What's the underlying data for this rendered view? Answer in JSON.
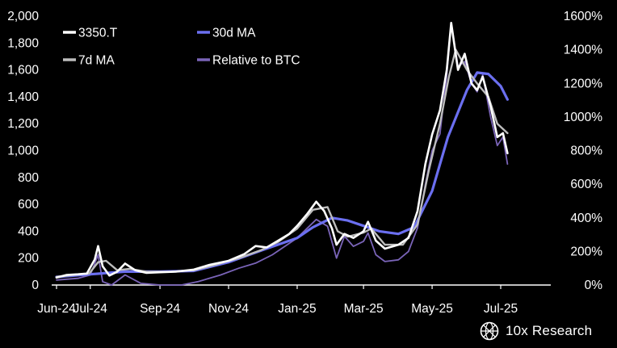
{
  "brand": {
    "name": "10x Research",
    "logo_icon": "globe-grid-logo-icon"
  },
  "colors": {
    "background": "#000000",
    "text": "#ffffff",
    "stock": "#ffffff",
    "ma7": "#bdbdbd",
    "ma30": "#6b6ff0",
    "relative": "#7a64b8"
  },
  "chart_data": {
    "type": "line",
    "x_ticks": [
      "Jun-24",
      "Jul-24",
      "Sep-24",
      "Nov-24",
      "Jan-25",
      "Mar-25",
      "May-25",
      "Jul-25"
    ],
    "x_tick_dates": [
      "2024-06-01",
      "2024-07-01",
      "2024-09-01",
      "2024-11-01",
      "2025-01-01",
      "2025-03-01",
      "2025-05-01",
      "2025-07-01"
    ],
    "y_left": {
      "range": [
        0,
        2000
      ],
      "ticks": [
        "0",
        "200",
        "400",
        "600",
        "800",
        "1,000",
        "1,200",
        "1,400",
        "1,600",
        "1,800",
        "2,000"
      ]
    },
    "y_right": {
      "range": [
        0,
        1600
      ],
      "unit": "%",
      "ticks": [
        "0%",
        "200%",
        "400%",
        "600%",
        "800%",
        "1000%",
        "1200%",
        "1400%",
        "1600%"
      ]
    },
    "grid": false,
    "legend_position": "top-left",
    "series": [
      {
        "name": "3350.T",
        "axis": "left",
        "color": "#ffffff",
        "points": [
          [
            "2024-06-01",
            55
          ],
          [
            "2024-06-10",
            75
          ],
          [
            "2024-06-20",
            80
          ],
          [
            "2024-06-28",
            85
          ],
          [
            "2024-07-05",
            190
          ],
          [
            "2024-07-08",
            290
          ],
          [
            "2024-07-12",
            140
          ],
          [
            "2024-07-18",
            70
          ],
          [
            "2024-07-25",
            100
          ],
          [
            "2024-08-01",
            160
          ],
          [
            "2024-08-10",
            110
          ],
          [
            "2024-08-20",
            90
          ],
          [
            "2024-09-01",
            95
          ],
          [
            "2024-09-15",
            100
          ],
          [
            "2024-10-01",
            115
          ],
          [
            "2024-10-15",
            150
          ],
          [
            "2024-11-01",
            180
          ],
          [
            "2024-11-15",
            230
          ],
          [
            "2024-11-25",
            290
          ],
          [
            "2024-12-05",
            280
          ],
          [
            "2024-12-15",
            330
          ],
          [
            "2024-12-25",
            380
          ],
          [
            "2025-01-01",
            440
          ],
          [
            "2025-01-10",
            530
          ],
          [
            "2025-01-18",
            620
          ],
          [
            "2025-01-25",
            550
          ],
          [
            "2025-02-01",
            420
          ],
          [
            "2025-02-05",
            300
          ],
          [
            "2025-02-12",
            380
          ],
          [
            "2025-02-20",
            350
          ],
          [
            "2025-03-01",
            400
          ],
          [
            "2025-03-05",
            470
          ],
          [
            "2025-03-12",
            330
          ],
          [
            "2025-03-20",
            270
          ],
          [
            "2025-04-01",
            300
          ],
          [
            "2025-04-10",
            350
          ],
          [
            "2025-04-18",
            550
          ],
          [
            "2025-04-25",
            900
          ],
          [
            "2025-05-01",
            1120
          ],
          [
            "2025-05-08",
            1300
          ],
          [
            "2025-05-14",
            1600
          ],
          [
            "2025-05-18",
            1950
          ],
          [
            "2025-05-24",
            1600
          ],
          [
            "2025-05-30",
            1720
          ],
          [
            "2025-06-05",
            1500
          ],
          [
            "2025-06-10",
            1450
          ],
          [
            "2025-06-15",
            1550
          ],
          [
            "2025-06-22",
            1330
          ],
          [
            "2025-06-28",
            1100
          ],
          [
            "2025-07-03",
            1130
          ],
          [
            "2025-07-07",
            980
          ]
        ]
      },
      {
        "name": "7d MA",
        "axis": "left",
        "color": "#bdbdbd",
        "points": [
          [
            "2024-06-01",
            60
          ],
          [
            "2024-06-15",
            75
          ],
          [
            "2024-06-30",
            85
          ],
          [
            "2024-07-08",
            170
          ],
          [
            "2024-07-15",
            180
          ],
          [
            "2024-07-25",
            110
          ],
          [
            "2024-08-05",
            120
          ],
          [
            "2024-08-20",
            100
          ],
          [
            "2024-09-10",
            98
          ],
          [
            "2024-10-01",
            110
          ],
          [
            "2024-10-20",
            150
          ],
          [
            "2024-11-10",
            200
          ],
          [
            "2024-11-30",
            260
          ],
          [
            "2024-12-15",
            320
          ],
          [
            "2025-01-01",
            420
          ],
          [
            "2025-01-15",
            560
          ],
          [
            "2025-01-28",
            580
          ],
          [
            "2025-02-06",
            400
          ],
          [
            "2025-02-15",
            360
          ],
          [
            "2025-03-01",
            390
          ],
          [
            "2025-03-08",
            420
          ],
          [
            "2025-03-20",
            300
          ],
          [
            "2025-04-05",
            300
          ],
          [
            "2025-04-18",
            450
          ],
          [
            "2025-04-28",
            850
          ],
          [
            "2025-05-08",
            1200
          ],
          [
            "2025-05-16",
            1550
          ],
          [
            "2025-05-22",
            1750
          ],
          [
            "2025-06-01",
            1600
          ],
          [
            "2025-06-10",
            1500
          ],
          [
            "2025-06-20",
            1400
          ],
          [
            "2025-06-28",
            1200
          ],
          [
            "2025-07-07",
            1130
          ]
        ]
      },
      {
        "name": "30d MA",
        "axis": "left",
        "color": "#6b6ff0",
        "points": [
          [
            "2024-06-01",
            60
          ],
          [
            "2024-07-01",
            80
          ],
          [
            "2024-08-01",
            100
          ],
          [
            "2024-09-01",
            100
          ],
          [
            "2024-10-01",
            105
          ],
          [
            "2024-11-01",
            170
          ],
          [
            "2024-12-01",
            260
          ],
          [
            "2025-01-01",
            350
          ],
          [
            "2025-01-15",
            430
          ],
          [
            "2025-02-01",
            500
          ],
          [
            "2025-02-15",
            480
          ],
          [
            "2025-03-01",
            440
          ],
          [
            "2025-03-15",
            400
          ],
          [
            "2025-04-01",
            380
          ],
          [
            "2025-04-15",
            430
          ],
          [
            "2025-05-01",
            700
          ],
          [
            "2025-05-15",
            1100
          ],
          [
            "2025-06-01",
            1450
          ],
          [
            "2025-06-10",
            1580
          ],
          [
            "2025-06-20",
            1570
          ],
          [
            "2025-07-01",
            1480
          ],
          [
            "2025-07-07",
            1380
          ]
        ]
      },
      {
        "name": "Relative to BTC",
        "axis": "right",
        "color": "#7a64b8",
        "points": [
          [
            "2024-06-01",
            30
          ],
          [
            "2024-06-20",
            40
          ],
          [
            "2024-07-01",
            60
          ],
          [
            "2024-07-08",
            180
          ],
          [
            "2024-07-12",
            20
          ],
          [
            "2024-07-20",
            0
          ],
          [
            "2024-08-01",
            60
          ],
          [
            "2024-08-15",
            10
          ],
          [
            "2024-09-01",
            0
          ],
          [
            "2024-09-20",
            0
          ],
          [
            "2024-10-05",
            20
          ],
          [
            "2024-10-25",
            60
          ],
          [
            "2024-11-10",
            100
          ],
          [
            "2024-11-25",
            130
          ],
          [
            "2024-12-10",
            180
          ],
          [
            "2025-01-01",
            280
          ],
          [
            "2025-01-18",
            390
          ],
          [
            "2025-01-28",
            350
          ],
          [
            "2025-02-05",
            160
          ],
          [
            "2025-02-12",
            290
          ],
          [
            "2025-02-20",
            230
          ],
          [
            "2025-03-01",
            260
          ],
          [
            "2025-03-05",
            310
          ],
          [
            "2025-03-12",
            180
          ],
          [
            "2025-03-20",
            140
          ],
          [
            "2025-04-01",
            150
          ],
          [
            "2025-04-10",
            200
          ],
          [
            "2025-04-18",
            340
          ],
          [
            "2025-04-25",
            600
          ],
          [
            "2025-05-01",
            800
          ],
          [
            "2025-05-08",
            900
          ],
          [
            "2025-05-14",
            1250
          ],
          [
            "2025-05-18",
            1560
          ],
          [
            "2025-05-24",
            1300
          ],
          [
            "2025-05-30",
            1330
          ],
          [
            "2025-06-05",
            1200
          ],
          [
            "2025-06-10",
            1150
          ],
          [
            "2025-06-15",
            1250
          ],
          [
            "2025-06-22",
            1000
          ],
          [
            "2025-06-28",
            830
          ],
          [
            "2025-07-03",
            880
          ],
          [
            "2025-07-07",
            720
          ]
        ]
      }
    ]
  }
}
